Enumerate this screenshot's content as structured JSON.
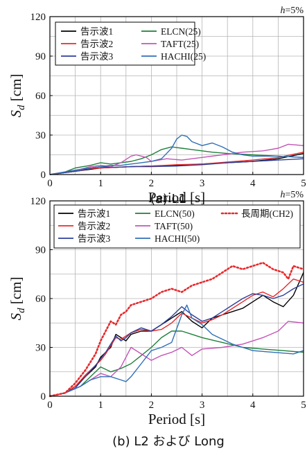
{
  "chart_data": [
    {
      "type": "line",
      "caption": "(a) L1",
      "note": "h=5%",
      "xlabel": "Period [s]",
      "ylabel": "Sd [cm]",
      "xlim": [
        0,
        5
      ],
      "ylim": [
        0,
        120
      ],
      "xticks": [
        0,
        1,
        2,
        3,
        4,
        5
      ],
      "yticks": [
        0,
        30,
        60,
        90,
        120
      ],
      "grid": true,
      "legend_position": "top-left",
      "series": [
        {
          "name": "告示波1",
          "color": "#000000",
          "dash": "",
          "x": [
            0,
            0.3,
            0.6,
            0.8,
            1.0,
            1.3,
            1.6,
            2.0,
            2.5,
            3.0,
            3.5,
            4.0,
            4.5,
            5.0
          ],
          "y": [
            0,
            1.5,
            3,
            4,
            5,
            5.5,
            6,
            6.5,
            7,
            8,
            9,
            10,
            12,
            16
          ]
        },
        {
          "name": "告示波2",
          "color": "#e8282b",
          "dash": "",
          "x": [
            0,
            0.3,
            0.6,
            0.8,
            1.0,
            1.3,
            1.6,
            2.0,
            2.5,
            3.0,
            3.5,
            4.0,
            4.5,
            5.0
          ],
          "y": [
            0,
            1.5,
            3,
            4.5,
            5,
            5.5,
            6,
            6.5,
            7.5,
            8,
            9.5,
            11,
            13,
            17
          ]
        },
        {
          "name": "告示波3",
          "color": "#2b3f99",
          "dash": "",
          "x": [
            0,
            0.3,
            0.6,
            0.8,
            1.0,
            1.3,
            1.6,
            2.0,
            2.5,
            3.0,
            3.5,
            4.0,
            4.5,
            5.0
          ],
          "y": [
            0,
            1.5,
            3,
            5,
            6,
            5.5,
            6,
            6,
            6.5,
            7.5,
            9,
            10,
            11,
            12
          ]
        },
        {
          "name": "ELCN(25)",
          "color": "#1d7f3a",
          "dash": "",
          "x": [
            0,
            0.3,
            0.5,
            0.8,
            1.0,
            1.2,
            1.4,
            1.6,
            1.8,
            2.0,
            2.2,
            2.4,
            2.6,
            2.8,
            3.0,
            3.2,
            3.5,
            4.0,
            4.5,
            5.0
          ],
          "y": [
            0,
            2,
            5,
            7,
            9,
            8,
            9,
            10,
            12,
            15,
            19,
            21,
            20,
            19,
            18,
            17,
            16,
            15,
            14,
            13
          ]
        },
        {
          "name": "TAFT(25)",
          "color": "#c354b6",
          "dash": "",
          "x": [
            0,
            0.3,
            0.6,
            0.8,
            1.0,
            1.2,
            1.4,
            1.6,
            1.7,
            1.9,
            2.0,
            2.3,
            2.6,
            3.0,
            3.4,
            3.8,
            4.2,
            4.5,
            4.7,
            5.0
          ],
          "y": [
            0,
            2,
            4,
            6,
            7,
            6,
            9,
            14,
            15,
            13,
            10,
            12,
            11,
            13,
            15,
            17,
            18,
            20,
            23,
            22
          ]
        },
        {
          "name": "HACHI(25)",
          "color": "#2e6fb6",
          "dash": "",
          "x": [
            0,
            0.3,
            0.6,
            0.8,
            1.0,
            1.2,
            1.4,
            1.6,
            1.8,
            2.0,
            2.2,
            2.4,
            2.5,
            2.6,
            2.7,
            2.8,
            3.0,
            3.2,
            3.4,
            3.6,
            3.8,
            4.0,
            4.5,
            5.0
          ],
          "y": [
            0,
            2,
            4,
            5,
            6,
            7,
            7,
            8,
            9,
            10,
            12,
            20,
            27,
            30,
            29,
            25,
            22,
            24,
            21,
            17,
            15,
            14,
            14,
            13
          ]
        }
      ]
    },
    {
      "type": "line",
      "caption": "(b) L2 および Long",
      "note": "h=5%",
      "xlabel": "Period [s]",
      "ylabel": "Sd [cm]",
      "xlim": [
        0,
        5
      ],
      "ylim": [
        0,
        120
      ],
      "xticks": [
        0,
        1,
        2,
        3,
        4,
        5
      ],
      "yticks": [
        0,
        30,
        60,
        90,
        120
      ],
      "grid": true,
      "legend_position": "top",
      "series": [
        {
          "name": "告示波1",
          "color": "#000000",
          "dash": "",
          "x": [
            0,
            0.3,
            0.5,
            0.7,
            0.9,
            1.0,
            1.1,
            1.2,
            1.3,
            1.4,
            1.5,
            1.6,
            1.8,
            2.0,
            2.2,
            2.4,
            2.6,
            2.8,
            3.0,
            3.2,
            3.4,
            3.6,
            3.8,
            4.0,
            4.2,
            4.4,
            4.6,
            4.8,
            5.0
          ],
          "y": [
            0,
            2,
            6,
            12,
            18,
            24,
            27,
            30,
            38,
            36,
            34,
            38,
            40,
            40,
            44,
            48,
            52,
            46,
            42,
            48,
            50,
            52,
            54,
            58,
            62,
            58,
            55,
            62,
            76
          ]
        },
        {
          "name": "告示波2",
          "color": "#e8282b",
          "dash": "",
          "x": [
            0,
            0.3,
            0.5,
            0.7,
            0.9,
            1.0,
            1.1,
            1.2,
            1.3,
            1.4,
            1.5,
            1.6,
            1.8,
            2.0,
            2.2,
            2.4,
            2.6,
            2.8,
            3.0,
            3.2,
            3.4,
            3.6,
            3.8,
            4.0,
            4.2,
            4.4,
            4.6,
            4.8,
            5.0
          ],
          "y": [
            0,
            2,
            6,
            13,
            19,
            22,
            26,
            31,
            36,
            35,
            37,
            39,
            41,
            40,
            41,
            45,
            51,
            48,
            45,
            47,
            50,
            54,
            58,
            62,
            64,
            61,
            66,
            72,
            70
          ]
        },
        {
          "name": "告示波3",
          "color": "#2b3f99",
          "dash": "",
          "x": [
            0,
            0.3,
            0.5,
            0.7,
            0.9,
            1.0,
            1.1,
            1.2,
            1.3,
            1.4,
            1.5,
            1.6,
            1.8,
            2.0,
            2.2,
            2.4,
            2.6,
            2.8,
            3.0,
            3.2,
            3.4,
            3.6,
            3.8,
            4.0,
            4.2,
            4.4,
            4.6,
            4.8,
            5.0
          ],
          "y": [
            0,
            2,
            5,
            12,
            19,
            23,
            27,
            32,
            37,
            34,
            36,
            39,
            42,
            40,
            44,
            49,
            55,
            50,
            46,
            48,
            52,
            56,
            60,
            63,
            62,
            60,
            62,
            66,
            69
          ]
        },
        {
          "name": "ELCN(50)",
          "color": "#1d7f3a",
          "dash": "",
          "x": [
            0,
            0.3,
            0.6,
            0.8,
            1.0,
            1.2,
            1.4,
            1.6,
            1.8,
            2.0,
            2.2,
            2.4,
            2.6,
            2.8,
            3.0,
            3.4,
            3.8,
            4.2,
            4.6,
            5.0
          ],
          "y": [
            0,
            2,
            6,
            12,
            18,
            15,
            17,
            20,
            25,
            30,
            36,
            40,
            40,
            38,
            36,
            33,
            30,
            29,
            28,
            27
          ]
        },
        {
          "name": "TAFT(50)",
          "color": "#c354b6",
          "dash": "",
          "x": [
            0,
            0.3,
            0.6,
            0.8,
            1.0,
            1.2,
            1.4,
            1.6,
            1.8,
            2.0,
            2.2,
            2.4,
            2.6,
            2.8,
            3.0,
            3.4,
            3.8,
            4.2,
            4.5,
            4.7,
            5.0
          ],
          "y": [
            0,
            2,
            6,
            10,
            14,
            12,
            18,
            30,
            26,
            22,
            25,
            27,
            30,
            25,
            29,
            30,
            32,
            36,
            40,
            46,
            45
          ]
        },
        {
          "name": "HACHI(50)",
          "color": "#2e6fb6",
          "dash": "",
          "x": [
            0,
            0.3,
            0.6,
            0.8,
            1.0,
            1.2,
            1.4,
            1.5,
            1.6,
            1.8,
            2.0,
            2.2,
            2.4,
            2.6,
            2.7,
            2.8,
            3.0,
            3.2,
            3.4,
            3.6,
            3.8,
            4.0,
            4.4,
            4.8,
            5.0
          ],
          "y": [
            0,
            2,
            6,
            10,
            12,
            12,
            10,
            9,
            12,
            20,
            28,
            30,
            33,
            50,
            56,
            48,
            44,
            38,
            35,
            32,
            30,
            28,
            27,
            26,
            28
          ]
        },
        {
          "name": "長周期(CH2)",
          "color": "#e8282b",
          "dash": "2,3",
          "x": [
            0,
            0.3,
            0.5,
            0.7,
            0.9,
            1.0,
            1.1,
            1.2,
            1.3,
            1.4,
            1.5,
            1.6,
            1.8,
            2.0,
            2.2,
            2.4,
            2.6,
            2.8,
            3.0,
            3.2,
            3.4,
            3.6,
            3.8,
            4.0,
            4.2,
            4.4,
            4.6,
            4.7,
            4.8,
            5.0
          ],
          "y": [
            0,
            2,
            8,
            16,
            26,
            34,
            40,
            46,
            44,
            50,
            52,
            56,
            58,
            60,
            64,
            66,
            64,
            68,
            70,
            72,
            76,
            80,
            78,
            80,
            82,
            78,
            76,
            72,
            80,
            78
          ]
        }
      ]
    }
  ]
}
